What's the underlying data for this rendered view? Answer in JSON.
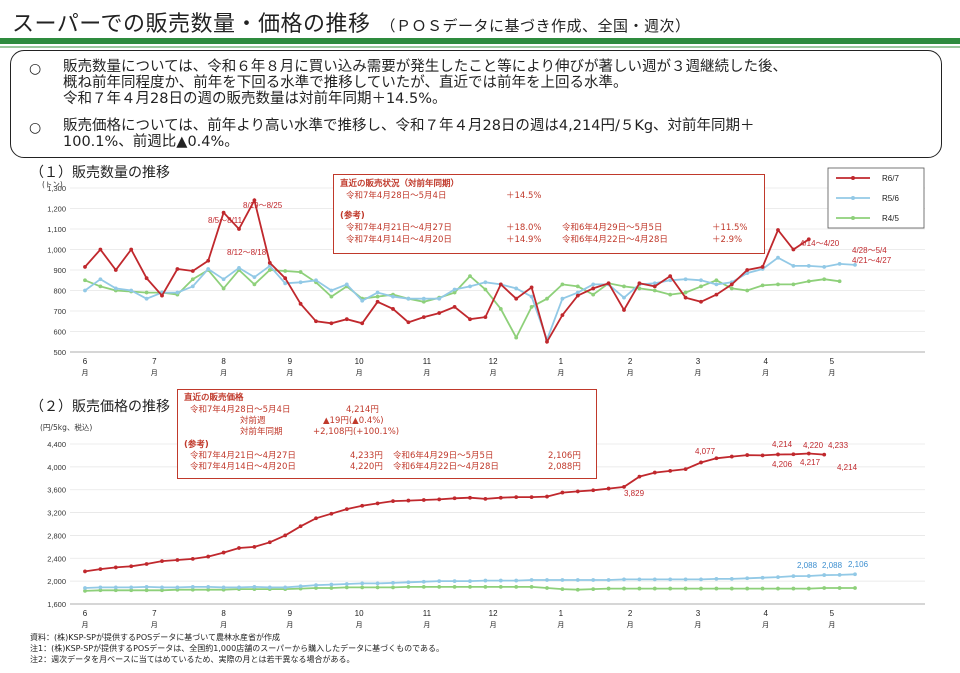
{
  "title": "スーパーでの販売数量・価格の推移",
  "subtitle": "（ＰＯＳデータに基づき作成、全国・週次）",
  "summary": {
    "bullet": "○",
    "item1_line1": "販売数量については、令和６年８月に買い込み需要が発生したこと等により伸びが著しい週が３週継続した後、",
    "item1_line2": "概ね前年同程度か、前年を下回る水準で推移していたが、直近では前年を上回る水準。",
    "item1_line3": "令和７年４月28日の週の販売数量は対前年同期＋14.5%。",
    "item2_line1": "販売価格については、前年より高い水準で推移し、令和７年４月28日の週は4,214円/５Kg、対前年同期＋",
    "item2_line2": "100.1%、前週比▲0.4%。"
  },
  "section1": "（１）販売数量の推移",
  "section2": "（２）販売価格の推移",
  "chart1_ylabel": "(トン)",
  "chart2_ylabel": "(円/5kg、税込)",
  "month_unit": "月",
  "colors": {
    "r67": "#c0282d",
    "r56": "#92c9e6",
    "r45": "#8ed07a",
    "box": "#c0392b"
  },
  "box1": {
    "head": "直近の販売状況（対前年同期）",
    "r1a": "令和7年4月28日～5月4日",
    "r1b": "＋14.5%",
    "ref": "(参考)",
    "r2a": "令和7年4月21日～4月27日",
    "r2b": "＋18.0%",
    "r2c": "令和6年4月29日～5月5日",
    "r2d": "＋11.5%",
    "r3a": "令和7年4月14日～4月20日",
    "r3b": "＋14.9%",
    "r3c": "令和6年4月22日～4月28日",
    "r3d": "＋2.9%"
  },
  "box2": {
    "head": "直近の販売価格",
    "r1a": "令和7年4月28日～5月4日",
    "r1b": "4,214円",
    "r2a": "対前週",
    "r2b": "▲19円(▲0.4%)",
    "r3a": "対前年同期",
    "r3b": "+2,108円(+100.1%)",
    "ref": "(参考)",
    "r4a": "令和7年4月21日～4月27日",
    "r4b": "4,233円",
    "r4c": "令和6年4月29日～5月5日",
    "r4d": "2,106円",
    "r5a": "令和7年4月14日～4月20日",
    "r5b": "4,220円",
    "r5c": "令和6年4月22日～4月28日",
    "r5d": "2,088円"
  },
  "notes": {
    "n0": "資料：(株)KSP-SPが提供するPOSデータに基づいて農林水産省が作成",
    "n1": "注1：(株)KSP-SPが提供するPOSデータは、全国約1,000店舗のスーパーから購入したデータに基づくものである。",
    "n2": "注2：週次データを月ベースに当てはめているため、実際の月とは若干異なる場合がある。"
  },
  "chart_data": [
    {
      "type": "line",
      "title": "（１）販売数量の推移",
      "ylabel": "(トン)",
      "ylim": [
        500,
        1300
      ],
      "yticks": [
        500,
        600,
        700,
        800,
        900,
        1000,
        1100,
        1200,
        1300
      ],
      "month_labels": [
        "6",
        "7",
        "8",
        "9",
        "10",
        "11",
        "12",
        "1",
        "2",
        "3",
        "4",
        "5"
      ],
      "month_positions": [
        0,
        4.5,
        9,
        13.3,
        17.8,
        22.2,
        26.5,
        30.9,
        35.4,
        39.8,
        44.2,
        48.5
      ],
      "legend": [
        "R6/7",
        "R5/6",
        "R4/5"
      ],
      "legend_position": "top-right",
      "series": [
        {
          "name": "R6/7",
          "values": [
            915,
            1000,
            900,
            1000,
            860,
            775,
            905,
            895,
            945,
            1180,
            1100,
            1240,
            935,
            860,
            735,
            650,
            640,
            660,
            640,
            745,
            710,
            645,
            670,
            690,
            720,
            660,
            670,
            830,
            760,
            815,
            550,
            680,
            775,
            810,
            835,
            705,
            835,
            820,
            870,
            765,
            745,
            780,
            830,
            900,
            915,
            1095,
            1000,
            1050
          ]
        },
        {
          "name": "R5/6",
          "values": [
            800,
            855,
            810,
            800,
            760,
            790,
            790,
            820,
            905,
            855,
            910,
            865,
            920,
            835,
            840,
            850,
            800,
            830,
            750,
            790,
            770,
            760,
            760,
            760,
            805,
            820,
            840,
            830,
            810,
            770,
            560,
            760,
            790,
            830,
            830,
            765,
            830,
            835,
            850,
            855,
            850,
            830,
            840,
            885,
            905,
            960,
            920,
            920,
            915,
            930,
            925
          ]
        },
        {
          "name": "R4/5",
          "values": [
            850,
            820,
            800,
            795,
            790,
            790,
            780,
            855,
            900,
            810,
            900,
            830,
            900,
            895,
            890,
            840,
            770,
            820,
            760,
            770,
            780,
            760,
            745,
            765,
            790,
            870,
            805,
            710,
            570,
            720,
            760,
            830,
            820,
            780,
            835,
            820,
            810,
            800,
            780,
            790,
            820,
            850,
            810,
            800,
            825,
            830,
            830,
            845,
            855,
            845
          ]
        }
      ],
      "annotations": [
        "8/5～8/11",
        "8/19～8/25",
        "8/12～8/18",
        "4/14～4/20",
        "4/28～5/4",
        "4/21～4/27"
      ]
    },
    {
      "type": "line",
      "title": "（２）販売価格の推移",
      "ylabel": "(円/5kg、税込)",
      "ylim": [
        1600,
        4400
      ],
      "yticks": [
        1600,
        2000,
        2400,
        2800,
        3200,
        3600,
        4000,
        4400
      ],
      "month_labels": [
        "6",
        "7",
        "8",
        "9",
        "10",
        "11",
        "12",
        "1",
        "2",
        "3",
        "4",
        "5"
      ],
      "month_positions": [
        0,
        4.5,
        9,
        13.3,
        17.8,
        22.2,
        26.5,
        30.9,
        35.4,
        39.8,
        44.2,
        48.5
      ],
      "series": [
        {
          "name": "R6/7",
          "values": [
            2170,
            2210,
            2240,
            2260,
            2300,
            2350,
            2370,
            2390,
            2430,
            2500,
            2580,
            2600,
            2680,
            2800,
            2960,
            3100,
            3180,
            3260,
            3320,
            3360,
            3400,
            3410,
            3420,
            3430,
            3450,
            3460,
            3440,
            3460,
            3470,
            3470,
            3480,
            3550,
            3570,
            3590,
            3620,
            3650,
            3829,
            3900,
            3930,
            3960,
            4077,
            4150,
            4180,
            4206,
            4200,
            4217,
            4220,
            4233,
            4214
          ]
        },
        {
          "name": "R5/6",
          "values": [
            1880,
            1890,
            1890,
            1890,
            1900,
            1890,
            1890,
            1900,
            1900,
            1890,
            1890,
            1900,
            1890,
            1890,
            1910,
            1930,
            1940,
            1950,
            1960,
            1960,
            1970,
            1980,
            1990,
            2000,
            2000,
            2000,
            2010,
            2010,
            2010,
            2020,
            2020,
            2020,
            2020,
            2020,
            2020,
            2030,
            2030,
            2030,
            2030,
            2030,
            2030,
            2040,
            2040,
            2050,
            2060,
            2070,
            2088,
            2090,
            2106,
            2110,
            2120
          ]
        },
        {
          "name": "R4/5",
          "values": [
            1830,
            1840,
            1840,
            1840,
            1840,
            1840,
            1850,
            1850,
            1850,
            1850,
            1860,
            1860,
            1860,
            1860,
            1870,
            1880,
            1880,
            1890,
            1890,
            1890,
            1890,
            1900,
            1900,
            1900,
            1900,
            1900,
            1900,
            1900,
            1900,
            1900,
            1880,
            1860,
            1850,
            1860,
            1870,
            1870,
            1870,
            1870,
            1870,
            1870,
            1870,
            1870,
            1870,
            1870,
            1870,
            1870,
            1870,
            1870,
            1880,
            1880,
            1880
          ]
        }
      ],
      "point_labels": [
        "3,829",
        "4,077",
        "4,214",
        "4,206",
        "4,217",
        "4,220",
        "4,233",
        "4,214",
        "2,088",
        "2,088",
        "2,106"
      ]
    }
  ]
}
